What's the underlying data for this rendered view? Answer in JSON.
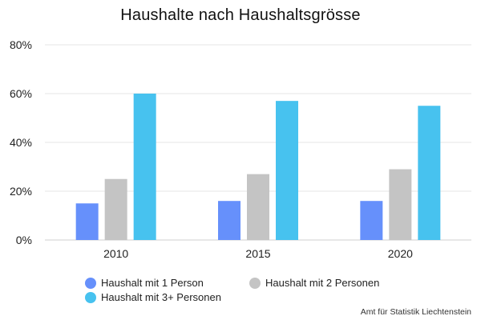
{
  "chart_data": {
    "type": "bar",
    "title": "Haushalte nach Haushaltsgrösse",
    "categories": [
      "2010",
      "2015",
      "2020"
    ],
    "series": [
      {
        "name": "Haushalt mit 1 Person",
        "color": "#6690fb",
        "values": [
          15,
          16,
          16
        ]
      },
      {
        "name": "Haushalt mit 2 Personen",
        "color": "#c4c4c4",
        "values": [
          25,
          27,
          29
        ]
      },
      {
        "name": "Haushalt mit 3+ Personen",
        "color": "#47c2ef",
        "values": [
          60,
          57,
          55
        ]
      }
    ],
    "ylim": [
      0,
      80
    ],
    "yticks": [
      "0%",
      "20%",
      "40%",
      "60%",
      "80%"
    ],
    "grid": true,
    "legend_position": "bottom"
  },
  "source": "Amt für Statistik Liechtenstein"
}
